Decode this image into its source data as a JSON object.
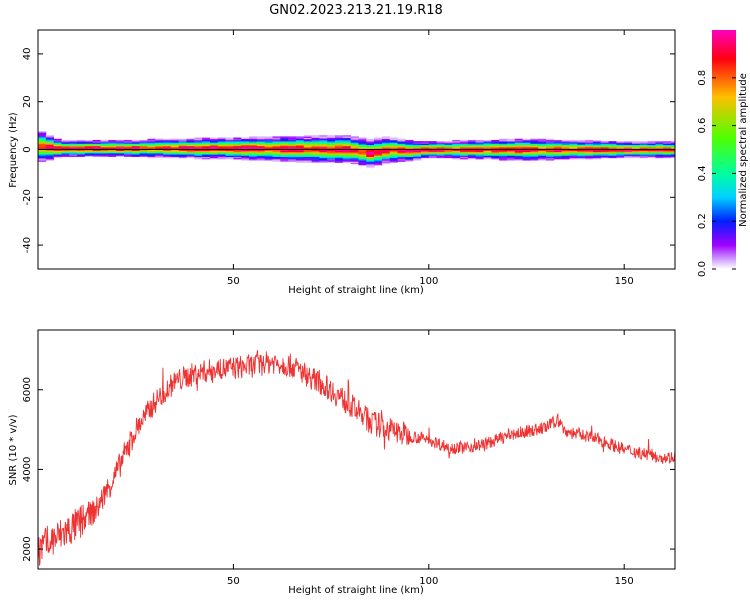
{
  "title": "GN02.2023.213.21.19.R18",
  "chart_data": [
    {
      "type": "heatmap",
      "xlabel": "Height of straight line (km)",
      "ylabel": "Frequency (Hz)",
      "xlim": [
        0,
        163
      ],
      "ylim": [
        -50,
        50
      ],
      "xticks": [
        50,
        100,
        150
      ],
      "yticks": [
        40,
        20,
        0,
        -20,
        -40
      ],
      "colorbar": {
        "label": "Normalized spectral amplitude",
        "range": [
          0,
          1
        ],
        "ticks": [
          "0.0",
          "0.2",
          "0.4",
          "0.6",
          "0.8"
        ],
        "colormap": "gist_rainbow_r",
        "colors": [
          "#ff00bf",
          "#ff0010",
          "#ffbf00",
          "#50ff00",
          "#00ff9f",
          "#00d0ff",
          "#0020ff",
          "#9f00ff",
          "#ffffff"
        ]
      },
      "band": {
        "center_hz": [
          [
            0,
            1.5
          ],
          [
            5,
            0.5
          ],
          [
            10,
            0.5
          ],
          [
            50,
            0.5
          ],
          [
            80,
            0
          ],
          [
            85,
            -1.5
          ],
          [
            90,
            0
          ],
          [
            95,
            -0.5
          ],
          [
            100,
            0
          ],
          [
            163,
            0
          ]
        ],
        "halfwidth_hz": [
          [
            0,
            6
          ],
          [
            6,
            3
          ],
          [
            20,
            3
          ],
          [
            50,
            4
          ],
          [
            72,
            5
          ],
          [
            88,
            5
          ],
          [
            100,
            3
          ],
          [
            125,
            4
          ],
          [
            150,
            3
          ],
          [
            163,
            3
          ]
        ],
        "line_hz": 0
      },
      "grid": false
    },
    {
      "type": "line",
      "xlabel": "Height of straight line (km)",
      "ylabel": "SNR (10 * v/v)",
      "xlim": [
        0,
        163
      ],
      "ylim": [
        1500,
        7500
      ],
      "xticks": [
        50,
        100,
        150
      ],
      "yticks": [
        2000,
        4000,
        6000
      ],
      "color": "#ee3333",
      "series": [
        {
          "x": [
            0,
            5,
            10,
            15,
            20,
            25,
            30,
            35,
            40,
            45,
            50,
            55,
            60,
            65,
            70,
            75,
            80,
            85,
            90,
            95,
            100,
            105,
            110,
            115,
            120,
            125,
            130,
            133,
            135,
            140,
            145,
            150,
            155,
            160,
            163
          ],
          "values": [
            2000,
            2300,
            2600,
            3000,
            3900,
            5000,
            5700,
            6200,
            6400,
            6500,
            6550,
            6600,
            6700,
            6600,
            6300,
            6000,
            5600,
            5200,
            5000,
            4850,
            4750,
            4550,
            4550,
            4650,
            4850,
            4950,
            5050,
            5250,
            4950,
            4850,
            4700,
            4500,
            4400,
            4300,
            4300
          ]
        }
      ],
      "grid": false
    }
  ]
}
